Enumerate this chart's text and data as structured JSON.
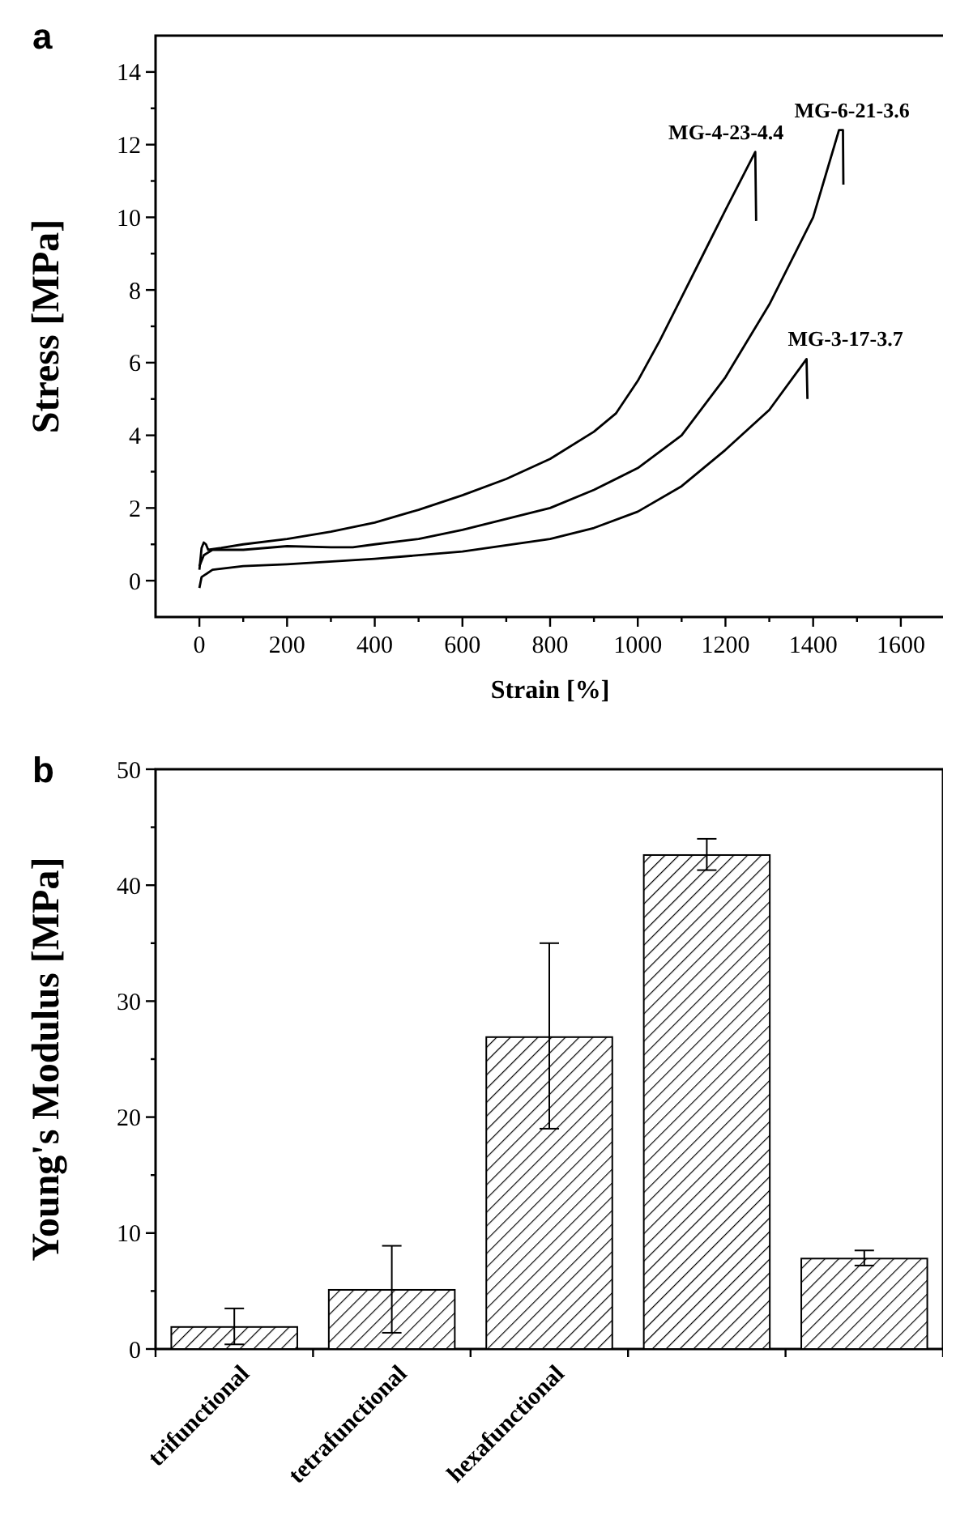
{
  "chart_data": [
    {
      "type": "line",
      "title": "a",
      "xlabel": "Strain [%]",
      "ylabel": "Stress [MPa]",
      "xlim": [
        -100,
        1700
      ],
      "ylim": [
        -1,
        15
      ],
      "xticks": [
        0,
        {
          "value": 100,
          "label": null
        },
        200,
        {
          "value": 300,
          "label": null
        },
        400,
        {
          "value": 500,
          "label": null
        },
        600,
        {
          "value": 700,
          "label": null
        },
        800,
        {
          "value": 900,
          "label": null
        },
        1000,
        {
          "value": 1100,
          "label": null
        },
        1200,
        {
          "value": 1300,
          "label": null
        },
        1400,
        {
          "value": 1500,
          "label": null
        },
        1600
      ],
      "yticks": [
        0,
        {
          "value": 1,
          "label": null
        },
        2,
        {
          "value": 3,
          "label": null
        },
        4,
        {
          "value": 5,
          "label": null
        },
        6,
        {
          "value": 7,
          "label": null
        },
        8,
        {
          "value": 9,
          "label": null
        },
        10,
        {
          "value": 11,
          "label": null
        },
        12,
        {
          "value": 13,
          "label": null
        },
        14
      ],
      "grid": false,
      "marker": "none",
      "line_style": "solid",
      "series": [
        {
          "name": "MG-4-23-4.4",
          "color": "#000000",
          "x": [
            0,
            5,
            10,
            15,
            20,
            50,
            100,
            200,
            300,
            400,
            500,
            600,
            700,
            800,
            900,
            950,
            1000,
            1050,
            1100,
            1150,
            1200,
            1268,
            1270
          ],
          "values": [
            0.3,
            0.9,
            1.05,
            1.0,
            0.85,
            0.9,
            1.0,
            1.15,
            1.35,
            1.6,
            1.95,
            2.35,
            2.8,
            3.35,
            4.1,
            4.6,
            5.5,
            6.6,
            7.8,
            9.0,
            10.2,
            11.8,
            9.9
          ]
        },
        {
          "name": "MG-6-21-3.6",
          "color": "#000000",
          "x": [
            0,
            10,
            30,
            100,
            200,
            300,
            350,
            400,
            500,
            600,
            700,
            800,
            900,
            1000,
            1100,
            1200,
            1300,
            1400,
            1459,
            1468,
            1469
          ],
          "values": [
            0.4,
            0.7,
            0.85,
            0.85,
            0.95,
            0.92,
            0.92,
            1.0,
            1.15,
            1.4,
            1.7,
            2.0,
            2.5,
            3.1,
            4.0,
            5.6,
            7.6,
            10.0,
            12.4,
            12.4,
            10.9
          ]
        },
        {
          "name": "MG-3-17-3.7",
          "color": "#000000",
          "x": [
            0,
            5,
            30,
            100,
            200,
            400,
            600,
            800,
            900,
            1000,
            1100,
            1200,
            1300,
            1385,
            1387
          ],
          "values": [
            -0.2,
            0.1,
            0.3,
            0.4,
            0.45,
            0.6,
            0.8,
            1.15,
            1.45,
            1.9,
            2.6,
            3.6,
            4.7,
            6.1,
            5.0
          ]
        }
      ]
    },
    {
      "type": "bar",
      "title": "b",
      "ylabel": "Young's Modulus [MPa]",
      "categories": [
        "trifunctional",
        "tetrafunctional",
        "hexafunctional",
        null,
        null
      ],
      "values": [
        1.9,
        5.1,
        26.9,
        42.6,
        7.8
      ],
      "errors": [
        [
          0.4,
          3.5
        ],
        [
          1.4,
          8.9
        ],
        [
          19,
          35
        ],
        [
          41.3,
          44
        ],
        [
          7.2,
          8.5
        ]
      ],
      "color": "#000000",
      "ylim": [
        0,
        50
      ],
      "yticks": [
        0,
        {
          "value": 5,
          "label": null
        },
        10,
        {
          "value": 15,
          "label": null
        },
        20,
        {
          "value": 25,
          "label": null
        },
        30,
        {
          "value": 35,
          "label": null
        },
        40,
        {
          "value": 45,
          "label": null
        },
        50
      ],
      "grid": false
    }
  ]
}
